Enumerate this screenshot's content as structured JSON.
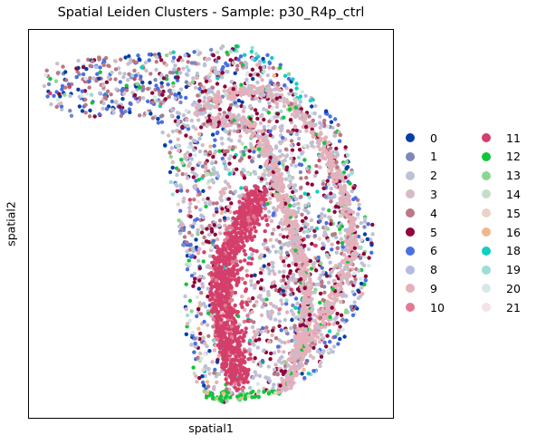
{
  "chart_data": {
    "type": "scatter",
    "title": "Spatial Leiden Clusters - Sample: p30_R4p_ctrl",
    "xlabel": "spatial1",
    "ylabel": "spatial2",
    "x_ticks": [],
    "y_ticks": [],
    "grid": false,
    "legend_placement": "right",
    "legend_columns": 2,
    "series": [
      {
        "name": "0",
        "color": "#023fa5"
      },
      {
        "name": "1",
        "color": "#7d87b9"
      },
      {
        "name": "2",
        "color": "#bec1d4"
      },
      {
        "name": "3",
        "color": "#d6bcc0"
      },
      {
        "name": "4",
        "color": "#bb7784"
      },
      {
        "name": "5",
        "color": "#8e063b"
      },
      {
        "name": "6",
        "color": "#4a6fe3"
      },
      {
        "name": "8",
        "color": "#b5bbe3"
      },
      {
        "name": "9",
        "color": "#e6afb9"
      },
      {
        "name": "10",
        "color": "#e07b91"
      },
      {
        "name": "11",
        "color": "#d33f6a"
      },
      {
        "name": "12",
        "color": "#11c638"
      },
      {
        "name": "13",
        "color": "#8dd593"
      },
      {
        "name": "14",
        "color": "#c6dec7"
      },
      {
        "name": "15",
        "color": "#ead3c6"
      },
      {
        "name": "16",
        "color": "#f0b98d"
      },
      {
        "name": "18",
        "color": "#0fcfc0"
      },
      {
        "name": "19",
        "color": "#9cded6"
      },
      {
        "name": "20",
        "color": "#d5eae7"
      },
      {
        "name": "21",
        "color": "#f3e1eb"
      }
    ]
  }
}
